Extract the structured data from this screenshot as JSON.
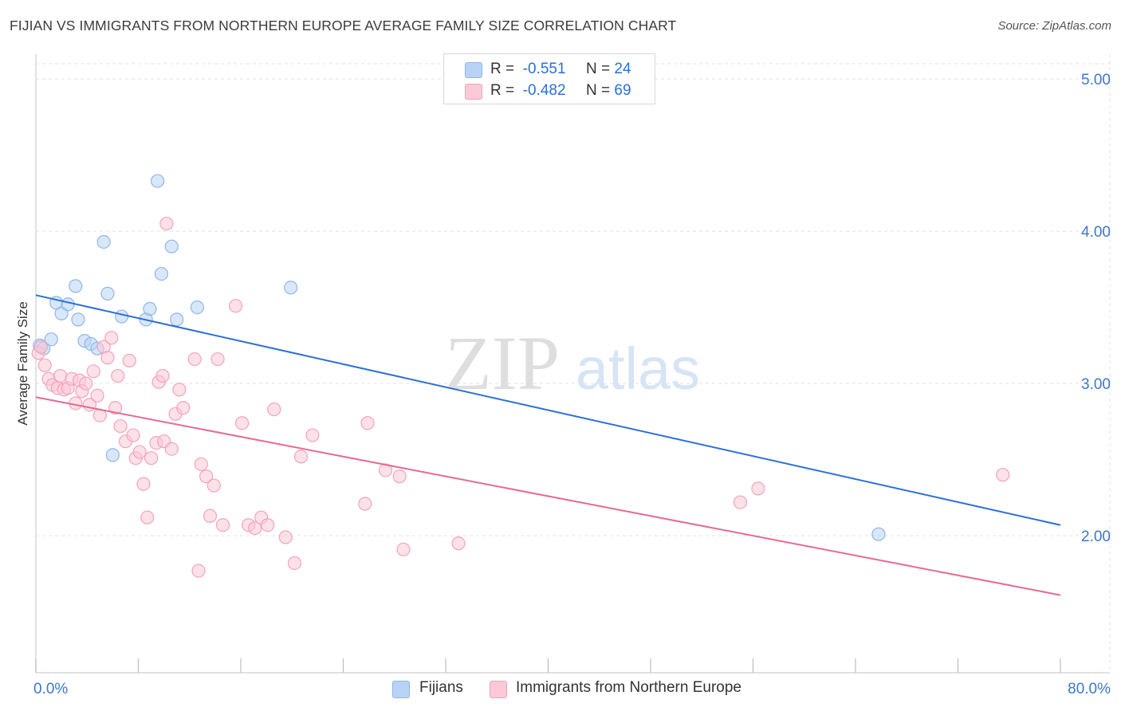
{
  "title": "FIJIAN VS IMMIGRANTS FROM NORTHERN EUROPE AVERAGE FAMILY SIZE CORRELATION CHART",
  "source": "Source: ZipAtlas.com",
  "watermark": {
    "zip": "ZIP",
    "atlas": "atlas"
  },
  "legend": {
    "r_label": "R =",
    "n_label": "N =",
    "series": [
      {
        "name": "Fijians",
        "r": "-0.551",
        "n": "24",
        "fill": "#b8d3f5",
        "stroke": "#8fb6ea"
      },
      {
        "name": "Immigrants from Northern Europe",
        "r": "-0.482",
        "n": "69",
        "fill": "#fbc9d7",
        "stroke": "#f2a3bb"
      }
    ]
  },
  "chart_data": {
    "type": "scatter",
    "title": "FIJIAN VS IMMIGRANTS FROM NORTHERN EUROPE AVERAGE FAMILY SIZE CORRELATION CHART",
    "xlabel": "",
    "ylabel": "Average Family Size",
    "xlim": [
      0,
      80
    ],
    "ylim": [
      1.1,
      5.1
    ],
    "x_tick_labels": [
      "0.0%",
      "80.0%"
    ],
    "y_ticks": [
      2,
      3,
      4,
      5
    ],
    "y_tick_labels": [
      "2.00",
      "3.00",
      "4.00",
      "5.00"
    ],
    "grid": true,
    "series": [
      {
        "name": "Fijians",
        "color": "#2b6fd6",
        "point_fill": "#b8d3f5",
        "point_stroke": "#8fb6ea",
        "trend": {
          "x": [
            0,
            80
          ],
          "y": [
            3.58,
            2.07
          ]
        },
        "points": [
          {
            "x": 0.3,
            "y": 3.25
          },
          {
            "x": 0.6,
            "y": 3.23
          },
          {
            "x": 1.2,
            "y": 3.29
          },
          {
            "x": 1.6,
            "y": 3.53
          },
          {
            "x": 2.0,
            "y": 3.46
          },
          {
            "x": 2.5,
            "y": 3.52
          },
          {
            "x": 3.1,
            "y": 3.64
          },
          {
            "x": 3.3,
            "y": 3.42
          },
          {
            "x": 3.8,
            "y": 3.28
          },
          {
            "x": 4.3,
            "y": 3.26
          },
          {
            "x": 4.8,
            "y": 3.23
          },
          {
            "x": 5.3,
            "y": 3.93
          },
          {
            "x": 5.6,
            "y": 3.59
          },
          {
            "x": 6.0,
            "y": 2.53
          },
          {
            "x": 6.7,
            "y": 3.44
          },
          {
            "x": 8.6,
            "y": 3.42
          },
          {
            "x": 8.9,
            "y": 3.49
          },
          {
            "x": 9.5,
            "y": 4.33
          },
          {
            "x": 9.8,
            "y": 3.72
          },
          {
            "x": 10.6,
            "y": 3.9
          },
          {
            "x": 11.0,
            "y": 3.42
          },
          {
            "x": 12.6,
            "y": 3.5
          },
          {
            "x": 19.9,
            "y": 3.63
          },
          {
            "x": 65.8,
            "y": 2.01
          }
        ]
      },
      {
        "name": "Immigrants from Northern Europe",
        "color": "#e56a94",
        "point_fill": "#fbc9d7",
        "point_stroke": "#f2a3bb",
        "trend": {
          "x": [
            0,
            80
          ],
          "y": [
            2.91,
            1.61
          ]
        },
        "points": [
          {
            "x": 0.2,
            "y": 3.2
          },
          {
            "x": 0.4,
            "y": 3.24
          },
          {
            "x": 0.7,
            "y": 3.12
          },
          {
            "x": 1.0,
            "y": 3.03
          },
          {
            "x": 1.3,
            "y": 2.99
          },
          {
            "x": 1.7,
            "y": 2.97
          },
          {
            "x": 1.9,
            "y": 3.05
          },
          {
            "x": 2.2,
            "y": 2.96
          },
          {
            "x": 2.5,
            "y": 2.97
          },
          {
            "x": 2.8,
            "y": 3.03
          },
          {
            "x": 3.1,
            "y": 2.87
          },
          {
            "x": 3.4,
            "y": 3.02
          },
          {
            "x": 3.6,
            "y": 2.95
          },
          {
            "x": 3.9,
            "y": 3.0
          },
          {
            "x": 4.2,
            "y": 2.86
          },
          {
            "x": 4.5,
            "y": 3.08
          },
          {
            "x": 4.8,
            "y": 2.92
          },
          {
            "x": 5.0,
            "y": 2.79
          },
          {
            "x": 5.3,
            "y": 3.24
          },
          {
            "x": 5.6,
            "y": 3.17
          },
          {
            "x": 5.9,
            "y": 3.3
          },
          {
            "x": 6.2,
            "y": 2.84
          },
          {
            "x": 6.4,
            "y": 3.05
          },
          {
            "x": 6.6,
            "y": 2.72
          },
          {
            "x": 7.0,
            "y": 2.62
          },
          {
            "x": 7.3,
            "y": 3.15
          },
          {
            "x": 7.6,
            "y": 2.66
          },
          {
            "x": 7.8,
            "y": 2.51
          },
          {
            "x": 8.1,
            "y": 2.55
          },
          {
            "x": 8.4,
            "y": 2.34
          },
          {
            "x": 8.7,
            "y": 2.12
          },
          {
            "x": 9.0,
            "y": 2.51
          },
          {
            "x": 9.4,
            "y": 2.61
          },
          {
            "x": 9.6,
            "y": 3.01
          },
          {
            "x": 9.9,
            "y": 3.05
          },
          {
            "x": 10.0,
            "y": 2.62
          },
          {
            "x": 10.2,
            "y": 4.05
          },
          {
            "x": 10.6,
            "y": 2.57
          },
          {
            "x": 10.9,
            "y": 2.8
          },
          {
            "x": 11.2,
            "y": 2.96
          },
          {
            "x": 11.5,
            "y": 2.84
          },
          {
            "x": 12.4,
            "y": 3.16
          },
          {
            "x": 12.7,
            "y": 1.77
          },
          {
            "x": 12.9,
            "y": 2.47
          },
          {
            "x": 13.3,
            "y": 2.39
          },
          {
            "x": 13.6,
            "y": 2.13
          },
          {
            "x": 13.9,
            "y": 2.33
          },
          {
            "x": 14.2,
            "y": 3.16
          },
          {
            "x": 14.6,
            "y": 2.07
          },
          {
            "x": 15.6,
            "y": 3.51
          },
          {
            "x": 16.1,
            "y": 2.74
          },
          {
            "x": 16.6,
            "y": 2.07
          },
          {
            "x": 17.1,
            "y": 2.05
          },
          {
            "x": 17.6,
            "y": 2.12
          },
          {
            "x": 18.1,
            "y": 2.07
          },
          {
            "x": 18.6,
            "y": 2.83
          },
          {
            "x": 19.5,
            "y": 1.99
          },
          {
            "x": 20.2,
            "y": 1.82
          },
          {
            "x": 20.7,
            "y": 2.52
          },
          {
            "x": 21.6,
            "y": 2.66
          },
          {
            "x": 25.7,
            "y": 2.21
          },
          {
            "x": 25.9,
            "y": 2.74
          },
          {
            "x": 27.3,
            "y": 2.43
          },
          {
            "x": 28.4,
            "y": 2.39
          },
          {
            "x": 28.7,
            "y": 1.91
          },
          {
            "x": 33.0,
            "y": 1.95
          },
          {
            "x": 55.0,
            "y": 2.22
          },
          {
            "x": 56.4,
            "y": 2.31
          },
          {
            "x": 75.5,
            "y": 2.4
          }
        ]
      }
    ]
  }
}
